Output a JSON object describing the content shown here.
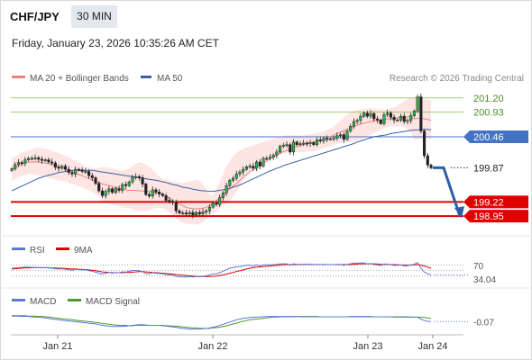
{
  "header": {
    "pair": "CHF/JPY",
    "timeframe": "30 MIN",
    "timestamp": "Friday, January 23, 2026 10:35:26 AM CET"
  },
  "legend": {
    "ma20": "MA 20 + Bollinger Bands",
    "ma50": "MA 50",
    "credit": "Research © 2026 Trading Central",
    "rsi": "RSI",
    "rsi_ma": "9MA",
    "macd": "MACD",
    "macd_signal": "MACD Signal"
  },
  "colors": {
    "ma20": "#f08080",
    "ma50": "#3b5fa6",
    "bands": "#fde0df",
    "pivot": "#4472c4",
    "resistance": "#7fba3a",
    "support": "#e00000",
    "arrow": "#2e5ea8",
    "macd_signal": "#4c9a2a"
  },
  "chart_data": {
    "type": "line",
    "series_type": "candlestick",
    "x_labels": [
      "Jan 21",
      "Jan 22",
      "Jan 23",
      "Jan 24"
    ],
    "ylim": [
      198.9,
      201.35
    ],
    "close": [
      199.85,
      199.93,
      199.97,
      199.96,
      200.02,
      200.05,
      200.05,
      200.06,
      200.03,
      200.01,
      200.02,
      199.98,
      199.96,
      199.88,
      199.86,
      199.9,
      199.84,
      199.78,
      199.75,
      199.84,
      199.83,
      199.8,
      199.8,
      199.72,
      199.68,
      199.57,
      199.43,
      199.34,
      199.42,
      199.47,
      199.4,
      199.47,
      199.44,
      199.55,
      199.53,
      199.6,
      199.69,
      199.7,
      199.68,
      199.56,
      199.36,
      199.33,
      199.45,
      199.41,
      199.37,
      199.34,
      199.25,
      199.23,
      199.21,
      199.05,
      199.01,
      199.01,
      198.99,
      199.02,
      198.97,
      199.02,
      198.99,
      199.03,
      199.05,
      199.12,
      199.2,
      199.17,
      199.3,
      199.39,
      199.53,
      199.63,
      199.67,
      199.75,
      199.79,
      199.84,
      199.89,
      199.9,
      199.86,
      199.98,
      199.9,
      200.05,
      200.05,
      200.07,
      200.11,
      200.17,
      200.28,
      200.3,
      200.31,
      200.17,
      200.36,
      200.31,
      200.33,
      200.34,
      200.33,
      200.35,
      200.31,
      200.4,
      200.38,
      200.43,
      200.42,
      200.42,
      200.43,
      200.48,
      200.5,
      200.41,
      200.57,
      200.66,
      200.75,
      200.77,
      200.85,
      200.91,
      200.85,
      200.9,
      200.8,
      200.78,
      200.71,
      200.88,
      200.91,
      200.83,
      200.78,
      200.78,
      200.85,
      200.75,
      200.77,
      200.86,
      200.95,
      201.22,
      200.57,
      200.1,
      199.92,
      199.87
    ],
    "ma20_band": {
      "upper": [
        200.06,
        200.08,
        200.12,
        200.15,
        200.18,
        200.2,
        200.22,
        200.25,
        200.25,
        200.24,
        200.23,
        200.21,
        200.19,
        200.17,
        200.15,
        200.12,
        200.1,
        200.07,
        200.03,
        200.0,
        199.97,
        199.93,
        199.9,
        199.88,
        199.87,
        199.86,
        199.87,
        199.88,
        199.88,
        199.87,
        199.86,
        199.84,
        199.82,
        199.81,
        199.83,
        199.86,
        199.9,
        199.95,
        199.98,
        199.96,
        199.93,
        199.89,
        199.84,
        199.77,
        199.7,
        199.66,
        199.64,
        199.62,
        199.61,
        199.6,
        199.58,
        199.58,
        199.59,
        199.61,
        199.62,
        199.64,
        199.63,
        199.56,
        199.45,
        199.36,
        199.35,
        199.47,
        199.6,
        199.75,
        199.9,
        200.0,
        200.09,
        200.16,
        200.2,
        200.23,
        200.26,
        200.28,
        200.3,
        200.32,
        200.34,
        200.36,
        200.38,
        200.4,
        200.42,
        200.44,
        200.46,
        200.48,
        200.49,
        200.49,
        200.49,
        200.48,
        200.48,
        200.49,
        200.5,
        200.51,
        200.52,
        200.53,
        200.55,
        200.57,
        200.59,
        200.62,
        200.66,
        200.71,
        200.77,
        200.83,
        200.88,
        200.92,
        200.95,
        200.97,
        200.98,
        200.99,
        201.0,
        201.0,
        201.0,
        200.99,
        200.98,
        200.98,
        200.99,
        201.0,
        201.02,
        201.05,
        201.1,
        201.14,
        201.18,
        201.2,
        201.2,
        201.2,
        201.19,
        201.18,
        201.17,
        201.16
      ],
      "middle": [
        199.84,
        199.87,
        199.9,
        199.93,
        199.96,
        199.98,
        199.98,
        199.98,
        199.98,
        199.97,
        199.96,
        199.95,
        199.93,
        199.91,
        199.89,
        199.87,
        199.85,
        199.83,
        199.8,
        199.77,
        199.74,
        199.72,
        199.69,
        199.66,
        199.64,
        199.61,
        199.59,
        199.56,
        199.55,
        199.53,
        199.51,
        199.49,
        199.48,
        199.46,
        199.45,
        199.44,
        199.44,
        199.44,
        199.43,
        199.43,
        199.42,
        199.42,
        199.41,
        199.39,
        199.38,
        199.35,
        199.33,
        199.29,
        199.25,
        199.21,
        199.18,
        199.15,
        199.12,
        199.1,
        199.09,
        199.09,
        199.09,
        199.1,
        199.12,
        199.15,
        199.19,
        199.24,
        199.3,
        199.35,
        199.41,
        199.46,
        199.52,
        199.57,
        199.63,
        199.69,
        199.74,
        199.79,
        199.83,
        199.87,
        199.92,
        199.96,
        200.0,
        200.04,
        200.07,
        200.11,
        200.14,
        200.18,
        200.2,
        200.23,
        200.25,
        200.27,
        200.29,
        200.31,
        200.33,
        200.34,
        200.36,
        200.37,
        200.39,
        200.41,
        200.43,
        200.46,
        200.49,
        200.52,
        200.55,
        200.58,
        200.6,
        200.63,
        200.66,
        200.68,
        200.7,
        200.72,
        200.73,
        200.75,
        200.76,
        200.77,
        200.78,
        200.79,
        200.8,
        200.8,
        200.81,
        200.82,
        200.83,
        200.83,
        200.84,
        200.84,
        200.8,
        200.81,
        200.81,
        200.8,
        200.79,
        200.77
      ],
      "lower": [
        199.62,
        199.66,
        199.69,
        199.72,
        199.73,
        199.75,
        199.75,
        199.74,
        199.72,
        199.7,
        199.69,
        199.67,
        199.67,
        199.65,
        199.63,
        199.62,
        199.6,
        199.58,
        199.56,
        199.54,
        199.51,
        199.49,
        199.47,
        199.44,
        199.41,
        199.37,
        199.32,
        199.25,
        199.2,
        199.18,
        199.16,
        199.15,
        199.14,
        199.12,
        199.11,
        199.1,
        199.08,
        199.06,
        199.05,
        199.05,
        199.05,
        199.06,
        199.09,
        199.11,
        199.11,
        199.1,
        199.07,
        199.02,
        198.96,
        198.9,
        198.86,
        198.83,
        198.8,
        198.8,
        198.79,
        198.79,
        198.8,
        198.84,
        198.89,
        198.95,
        199.0,
        199.05,
        199.1,
        199.15,
        199.2,
        199.25,
        199.32,
        199.41,
        199.52,
        199.63,
        199.72,
        199.8,
        199.87,
        199.93,
        199.98,
        200.02,
        200.05,
        200.08,
        200.1,
        200.12,
        200.13,
        200.14,
        200.15,
        200.16,
        200.17,
        200.17,
        200.17,
        200.17,
        200.18,
        200.18,
        200.19,
        200.2,
        200.22,
        200.24,
        200.26,
        200.29,
        200.31,
        200.33,
        200.34,
        200.35,
        200.36,
        200.36,
        200.37,
        200.39,
        200.41,
        200.44,
        200.47,
        200.5,
        200.53,
        200.56,
        200.59,
        200.62,
        200.64,
        200.66,
        200.66,
        200.66,
        200.66,
        200.64,
        200.6,
        200.55,
        200.41,
        200.41,
        200.42,
        200.43,
        200.43,
        200.4
      ]
    },
    "ma50": [
      199.43,
      199.46,
      199.49,
      199.52,
      199.55,
      199.58,
      199.61,
      199.64,
      199.67,
      199.69,
      199.71,
      199.73,
      199.74,
      199.76,
      199.78,
      199.79,
      199.8,
      199.81,
      199.82,
      199.82,
      199.82,
      199.82,
      199.82,
      199.82,
      199.82,
      199.81,
      199.8,
      199.79,
      199.78,
      199.77,
      199.76,
      199.75,
      199.74,
      199.73,
      199.72,
      199.71,
      199.7,
      199.69,
      199.68,
      199.67,
      199.66,
      199.65,
      199.64,
      199.63,
      199.62,
      199.6,
      199.59,
      199.57,
      199.55,
      199.54,
      199.52,
      199.5,
      199.49,
      199.48,
      199.46,
      199.45,
      199.44,
      199.43,
      199.43,
      199.42,
      199.42,
      199.43,
      199.44,
      199.45,
      199.46,
      199.48,
      199.5,
      199.52,
      199.54,
      199.57,
      199.6,
      199.63,
      199.66,
      199.69,
      199.72,
      199.75,
      199.78,
      199.81,
      199.83,
      199.86,
      199.88,
      199.91,
      199.93,
      199.95,
      199.97,
      199.99,
      200.01,
      200.03,
      200.05,
      200.07,
      200.09,
      200.11,
      200.13,
      200.15,
      200.17,
      200.19,
      200.21,
      200.23,
      200.25,
      200.27,
      200.29,
      200.31,
      200.33,
      200.36,
      200.38,
      200.4,
      200.42,
      200.44,
      200.46,
      200.47,
      200.48,
      200.49,
      200.5,
      200.52,
      200.53,
      200.54,
      200.55,
      200.56,
      200.57,
      200.58,
      200.59,
      200.59,
      200.6,
      200.6,
      200.6,
      200.59
    ],
    "levels": [
      {
        "label": "201.20",
        "value": 201.2,
        "kind": "resistance"
      },
      {
        "label": "200.93",
        "value": 200.93,
        "kind": "resistance"
      },
      {
        "label": "200.46",
        "value": 200.46,
        "kind": "pivot"
      },
      {
        "label": "199.87",
        "value": 199.87,
        "kind": "last"
      },
      {
        "label": "199.22",
        "value": 199.22,
        "kind": "support"
      },
      {
        "label": "198.95",
        "value": 198.95,
        "kind": "support"
      }
    ],
    "forecast_arrow": [
      199.87,
      199.87,
      198.95
    ],
    "rsi": {
      "labels": [
        "70",
        "34.04"
      ],
      "ylim": [
        0,
        100
      ],
      "rsi": [
        58,
        59,
        60,
        61,
        62,
        62,
        61,
        61,
        60,
        60,
        60,
        59,
        58,
        56,
        55,
        56,
        54,
        52,
        51,
        54,
        53,
        52,
        52,
        49,
        47,
        44,
        40,
        37,
        40,
        43,
        40,
        43,
        42,
        45,
        44,
        47,
        50,
        50,
        49,
        45,
        39,
        38,
        42,
        40,
        39,
        38,
        35,
        34,
        33,
        29,
        27,
        27,
        26,
        28,
        26,
        28,
        27,
        29,
        31,
        34,
        38,
        37,
        42,
        47,
        53,
        58,
        60,
        63,
        64,
        66,
        68,
        68,
        66,
        70,
        66,
        70,
        70,
        70,
        71,
        72,
        74,
        74,
        74,
        68,
        74,
        72,
        72,
        72,
        72,
        72,
        70,
        72,
        71,
        72,
        71,
        71,
        71,
        72,
        72,
        68,
        72,
        74,
        76,
        76,
        77,
        77,
        74,
        75,
        71,
        70,
        67,
        73,
        73,
        70,
        68,
        68,
        70,
        66,
        67,
        70,
        72,
        78,
        58,
        44,
        38,
        34
      ],
      "ma9": [
        55,
        56,
        57,
        58,
        59,
        59,
        60,
        60,
        60,
        60,
        60,
        60,
        59,
        59,
        58,
        58,
        57,
        56,
        55,
        55,
        54,
        54,
        53,
        52,
        51,
        49,
        47,
        45,
        44,
        43,
        42,
        42,
        42,
        42,
        43,
        43,
        44,
        45,
        46,
        46,
        45,
        44,
        43,
        42,
        41,
        40,
        39,
        38,
        37,
        35,
        34,
        33,
        32,
        31,
        30,
        29,
        28,
        28,
        28,
        28,
        29,
        30,
        32,
        34,
        37,
        40,
        43,
        46,
        49,
        52,
        55,
        58,
        60,
        62,
        63,
        64,
        65,
        66,
        67,
        68,
        69,
        70,
        71,
        71,
        71,
        71,
        71,
        72,
        72,
        72,
        71,
        71,
        71,
        71,
        71,
        71,
        71,
        71,
        71,
        71,
        71,
        71,
        72,
        73,
        74,
        74,
        74,
        74,
        74,
        73,
        72,
        72,
        72,
        71,
        71,
        70,
        70,
        69,
        69,
        69,
        70,
        71,
        69,
        66,
        62,
        58
      ]
    },
    "macd": {
      "labels": [
        "-0.07"
      ],
      "ylim": [
        -0.35,
        0.35
      ],
      "macd": [
        0.08,
        0.08,
        0.08,
        0.07,
        0.07,
        0.07,
        0.06,
        0.05,
        0.05,
        0.04,
        0.03,
        0.02,
        0.0,
        -0.01,
        -0.02,
        -0.03,
        -0.04,
        -0.05,
        -0.06,
        -0.07,
        -0.08,
        -0.09,
        -0.1,
        -0.11,
        -0.12,
        -0.13,
        -0.15,
        -0.17,
        -0.18,
        -0.19,
        -0.2,
        -0.2,
        -0.2,
        -0.2,
        -0.19,
        -0.18,
        -0.17,
        -0.16,
        -0.15,
        -0.15,
        -0.16,
        -0.17,
        -0.17,
        -0.17,
        -0.17,
        -0.18,
        -0.19,
        -0.2,
        -0.21,
        -0.22,
        -0.24,
        -0.25,
        -0.26,
        -0.27,
        -0.27,
        -0.27,
        -0.27,
        -0.26,
        -0.25,
        -0.24,
        -0.22,
        -0.2,
        -0.17,
        -0.14,
        -0.11,
        -0.08,
        -0.05,
        -0.02,
        0.0,
        0.02,
        0.03,
        0.04,
        0.05,
        0.05,
        0.06,
        0.06,
        0.07,
        0.07,
        0.07,
        0.07,
        0.07,
        0.07,
        0.07,
        0.07,
        0.07,
        0.07,
        0.06,
        0.06,
        0.06,
        0.06,
        0.06,
        0.06,
        0.06,
        0.06,
        0.06,
        0.06,
        0.06,
        0.06,
        0.06,
        0.06,
        0.06,
        0.07,
        0.07,
        0.07,
        0.07,
        0.07,
        0.07,
        0.07,
        0.06,
        0.06,
        0.06,
        0.06,
        0.06,
        0.06,
        0.05,
        0.05,
        0.05,
        0.05,
        0.05,
        0.05,
        0.05,
        0.05,
        0.0,
        -0.04,
        -0.06,
        -0.07
      ],
      "signal": [
        0.09,
        0.09,
        0.09,
        0.09,
        0.09,
        0.08,
        0.08,
        0.08,
        0.07,
        0.07,
        0.06,
        0.05,
        0.04,
        0.03,
        0.02,
        0.01,
        0.0,
        -0.01,
        -0.02,
        -0.03,
        -0.04,
        -0.05,
        -0.06,
        -0.07,
        -0.08,
        -0.09,
        -0.1,
        -0.12,
        -0.13,
        -0.14,
        -0.15,
        -0.16,
        -0.17,
        -0.17,
        -0.17,
        -0.18,
        -0.18,
        -0.17,
        -0.17,
        -0.17,
        -0.17,
        -0.17,
        -0.17,
        -0.17,
        -0.17,
        -0.17,
        -0.18,
        -0.18,
        -0.19,
        -0.19,
        -0.2,
        -0.21,
        -0.22,
        -0.23,
        -0.24,
        -0.24,
        -0.25,
        -0.25,
        -0.25,
        -0.25,
        -0.24,
        -0.23,
        -0.22,
        -0.2,
        -0.18,
        -0.16,
        -0.13,
        -0.11,
        -0.08,
        -0.06,
        -0.04,
        -0.02,
        -0.01,
        0.0,
        0.01,
        0.02,
        0.03,
        0.04,
        0.05,
        0.05,
        0.06,
        0.06,
        0.06,
        0.06,
        0.06,
        0.07,
        0.07,
        0.07,
        0.07,
        0.07,
        0.07,
        0.07,
        0.06,
        0.06,
        0.06,
        0.06,
        0.06,
        0.06,
        0.06,
        0.06,
        0.06,
        0.06,
        0.06,
        0.06,
        0.06,
        0.06,
        0.06,
        0.06,
        0.06,
        0.06,
        0.06,
        0.06,
        0.06,
        0.06,
        0.06,
        0.06,
        0.06,
        0.06,
        0.06,
        0.05,
        0.05,
        0.05,
        0.05,
        0.04,
        0.03,
        0.02
      ]
    }
  }
}
